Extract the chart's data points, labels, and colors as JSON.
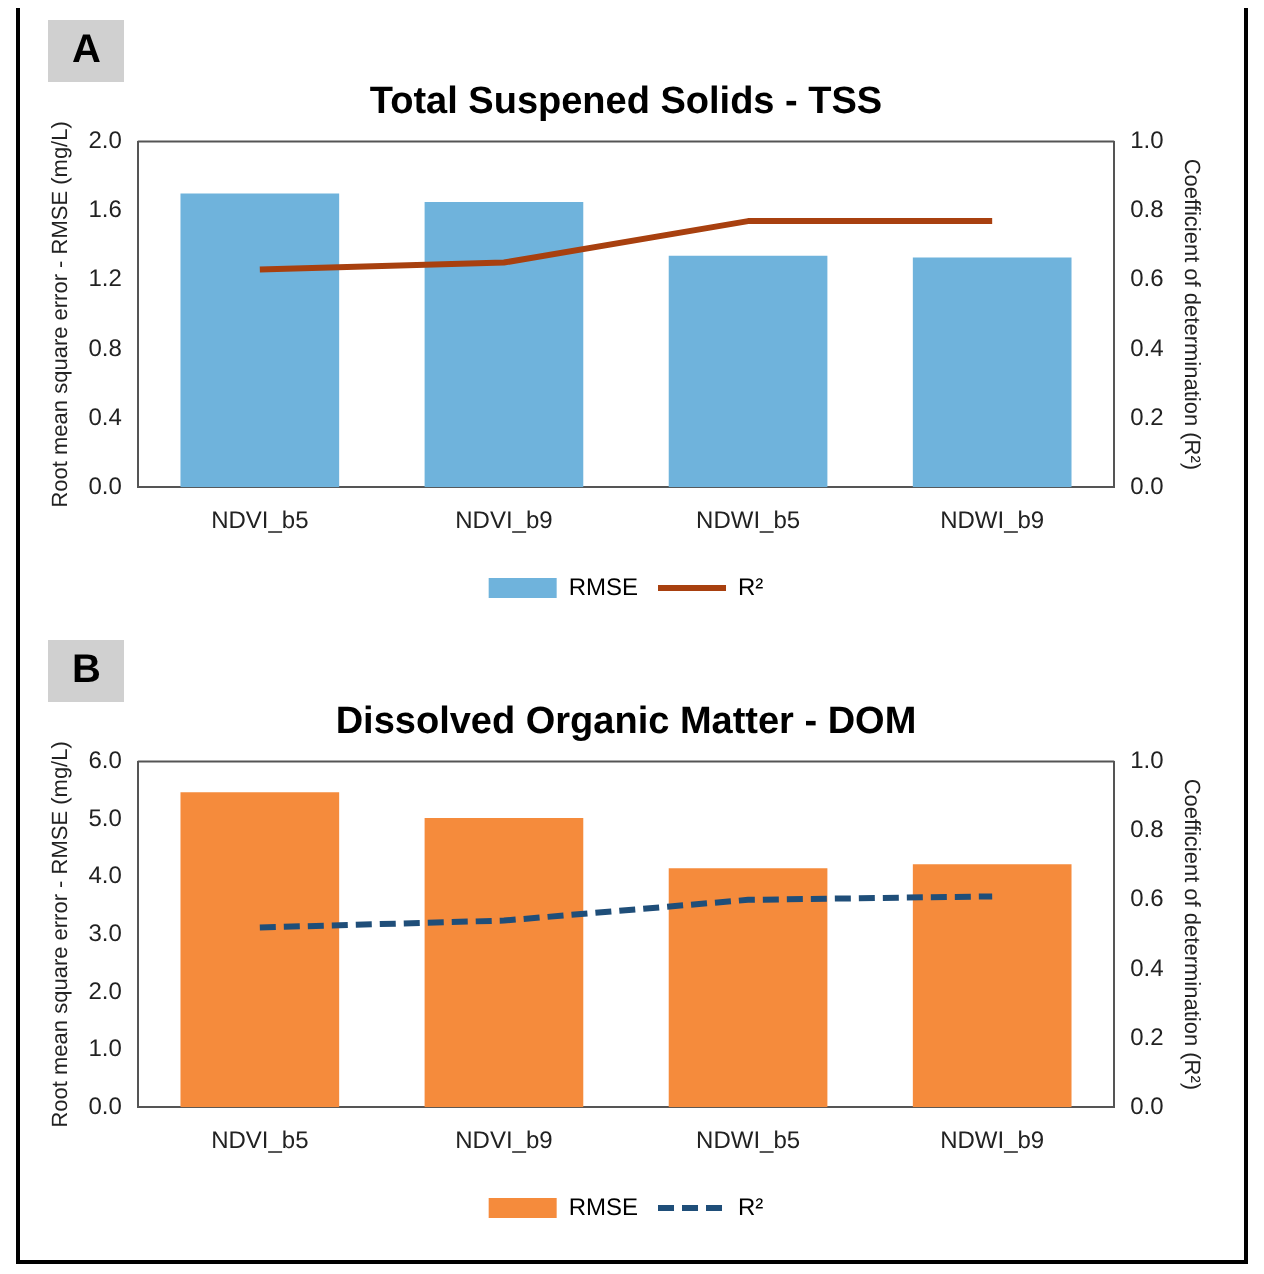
{
  "chart_data": [
    {
      "type": "bar",
      "title": "Total Suspened Solids - TSS",
      "ylabel": "Root mean square error - RMSE (mg/L)",
      "y2label": "Coefficient of determination (R²)",
      "annotations": [
        "A"
      ],
      "categories": [
        "NDVI_b5",
        "NDVI_b9",
        "NDWI_b5",
        "NDWI_b9"
      ],
      "series": [
        {
          "name": "RMSE",
          "color": "#6fb3dc",
          "values": [
            1.7,
            1.65,
            1.34,
            1.33
          ]
        },
        {
          "name": "R²",
          "type": "line",
          "axis": "y2",
          "color": "#a8400f",
          "line_style": "solid",
          "values": [
            0.63,
            0.65,
            0.77,
            0.77
          ]
        }
      ],
      "ylim": [
        0,
        2.0
      ],
      "yticks": [
        {
          "value": 0,
          "label": "0.0"
        },
        {
          "value": 0.4,
          "label": "0.4"
        },
        {
          "value": 0.8,
          "label": "0.8"
        },
        {
          "value": 1.2,
          "label": "1.2"
        },
        {
          "value": 1.6,
          "label": "1.6"
        },
        {
          "value": 2.0,
          "label": "2.0"
        }
      ],
      "y2lim": [
        0,
        1.0
      ],
      "y2ticks": [
        {
          "value": 0,
          "label": "0.0"
        },
        {
          "value": 0.2,
          "label": "0.2"
        },
        {
          "value": 0.4,
          "label": "0.4"
        },
        {
          "value": 0.6,
          "label": "0.6"
        },
        {
          "value": 0.8,
          "label": "0.8"
        },
        {
          "value": 1.0,
          "label": "1.0"
        }
      ],
      "grid": false,
      "legend": "bottom",
      "marker": "none"
    },
    {
      "type": "bar",
      "title": "Dissolved Organic Matter - DOM",
      "ylabel": "Root mean square error - RMSE (mg/L)",
      "y2label": "Coefficient of determination (R²)",
      "annotations": [
        "B"
      ],
      "categories": [
        "NDVI_b5",
        "NDVI_b9",
        "NDWI_b5",
        "NDWI_b9"
      ],
      "series": [
        {
          "name": "RMSE",
          "color": "#f58b3c",
          "values": [
            5.47,
            5.02,
            4.15,
            4.22
          ]
        },
        {
          "name": "R²",
          "type": "line",
          "axis": "y2",
          "color": "#1f4e79",
          "line_style": "dashed",
          "values": [
            0.52,
            0.54,
            0.6,
            0.61
          ]
        }
      ],
      "ylim": [
        0,
        6.0
      ],
      "yticks": [
        {
          "value": 0,
          "label": "0.0"
        },
        {
          "value": 1,
          "label": "1.0"
        },
        {
          "value": 2,
          "label": "2.0"
        },
        {
          "value": 3,
          "label": "3.0"
        },
        {
          "value": 4,
          "label": "4.0"
        },
        {
          "value": 5,
          "label": "5.0"
        },
        {
          "value": 6,
          "label": "6.0"
        }
      ],
      "y2lim": [
        0,
        1.0
      ],
      "y2ticks": [
        {
          "value": 0,
          "label": "0.0"
        },
        {
          "value": 0.2,
          "label": "0.2"
        },
        {
          "value": 0.4,
          "label": "0.4"
        },
        {
          "value": 0.6,
          "label": "0.6"
        },
        {
          "value": 0.8,
          "label": "0.8"
        },
        {
          "value": 1.0,
          "label": "1.0"
        }
      ],
      "grid": false,
      "legend": "bottom",
      "marker": "none"
    }
  ]
}
